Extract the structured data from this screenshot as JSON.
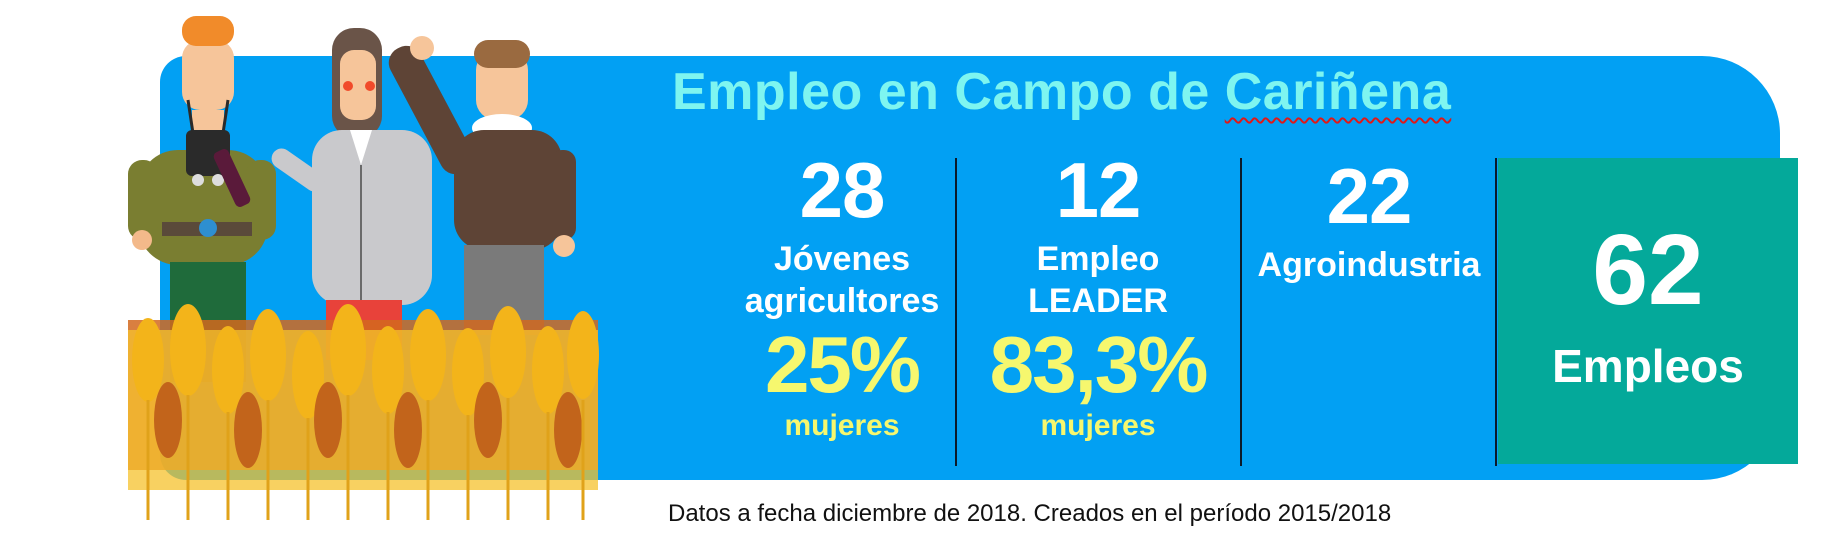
{
  "title": {
    "prefix": "Empleo en Campo de ",
    "underlined": "Cariñena"
  },
  "stats": [
    {
      "value": "28",
      "label_line1": "Jóvenes",
      "label_line2": "agricultores",
      "percent": "25%",
      "percent_label": "mujeres"
    },
    {
      "value": "12",
      "label_line1": "Empleo",
      "label_line2": "LEADER",
      "percent": "83,3%",
      "percent_label": "mujeres"
    },
    {
      "value": "22",
      "label_line1": "Agroindustria"
    }
  ],
  "total": {
    "value": "62",
    "label": "Empleos"
  },
  "footnote": "Datos a fecha diciembre de 2018. Creados en el período 2015/2018",
  "colors": {
    "panel": "#02a0f3",
    "title": "#7ef5f0",
    "highlight": "#f6f76e",
    "total": "#04a99a"
  },
  "illustration": "farmers-and-wheat-illustration"
}
